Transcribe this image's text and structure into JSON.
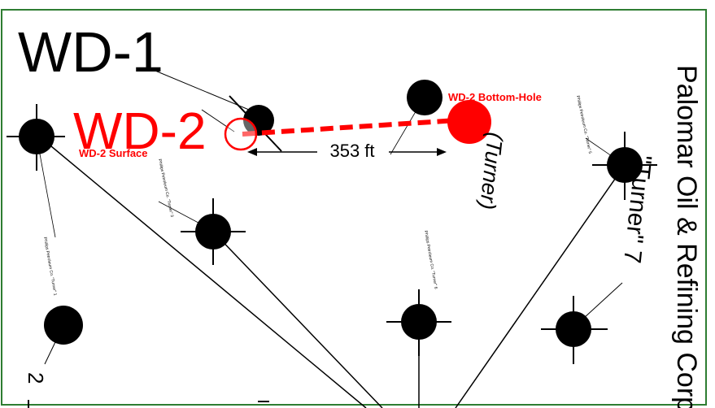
{
  "labels": {
    "wd1": "WD-1",
    "wd2": "WD-2",
    "wd2_surface": "WD-2 Surface",
    "wd2_bottom_hole": "WD-2 Bottom-Hole",
    "distance": "353 ft",
    "turner_paren": "(Turner)",
    "operator": "Palomar Oil & Refining Corp.",
    "turner_well": "\"Turner\" 7",
    "corner_number": "2"
  },
  "well_notes": [
    "Phillips Petroleum Co. \"Turner\" 1",
    "Phillips Petroleum Co. \"Turner\" 3",
    "Phillips Petroleum Co. \"Turner\" 5",
    "Phillips Petroleum Co. \"Turner\" 6"
  ],
  "colors": {
    "proposed_well": "#ff0000",
    "existing_well": "#000000",
    "border": "#2e7d32",
    "lines": "#000000"
  }
}
